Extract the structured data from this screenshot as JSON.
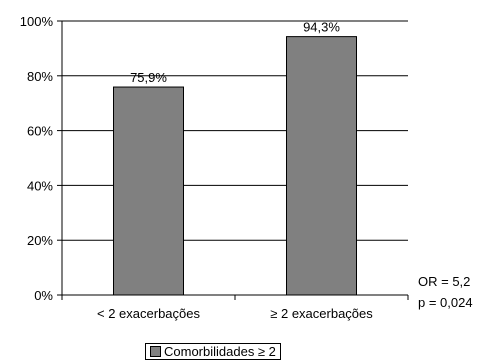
{
  "chart_data": {
    "type": "bar",
    "categories": [
      "< 2 exacerbações",
      "≥ 2 exacerbações"
    ],
    "series": [
      {
        "name": "Comorbilidades ≥ 2",
        "values": [
          75.9,
          94.3
        ],
        "color": "#808080"
      }
    ],
    "data_labels": [
      "75,9%",
      "94,3%"
    ],
    "ylim": [
      0,
      100
    ],
    "y_ticks": [
      0,
      20,
      40,
      60,
      80,
      100
    ],
    "y_tick_labels": [
      "0%",
      "20%",
      "40%",
      "60%",
      "80%",
      "100%"
    ],
    "grid": true,
    "legend": {
      "position": "bottom",
      "label": "Comorbilidades ≥ 2"
    },
    "annotations": [
      "OR = 5,2",
      "p = 0,024"
    ],
    "title": "",
    "xlabel": "",
    "ylabel": ""
  }
}
